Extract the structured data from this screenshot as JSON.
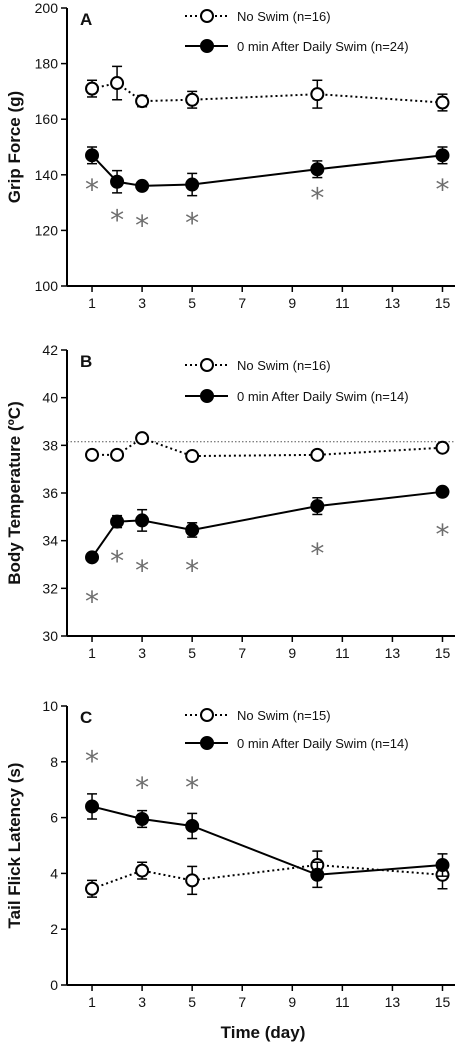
{
  "chart_data": [
    {
      "type": "line",
      "panel_label": "A",
      "ylabel": "Grip Force (g)",
      "xlabel": "",
      "xlim": [
        0,
        15.5
      ],
      "ylim": [
        100,
        200
      ],
      "xticks": [
        1,
        3,
        5,
        7,
        9,
        11,
        13,
        15
      ],
      "yticks": [
        100,
        120,
        140,
        160,
        180,
        200
      ],
      "ytick_labels": [
        "100",
        "120",
        "140",
        "160",
        "180",
        "200"
      ],
      "grid": false,
      "legend_position": "top",
      "reference_line": null,
      "series": [
        {
          "name": "No Swim (n=16)",
          "marker": "open-circle",
          "line_style": "dotted",
          "color": "#000000",
          "x": [
            1,
            2,
            3,
            5,
            10,
            15
          ],
          "y": [
            171,
            173,
            166.5,
            167,
            169,
            166
          ],
          "err": [
            3,
            6,
            2,
            3,
            5,
            3
          ]
        },
        {
          "name": "0 min After Daily Swim (n=24)",
          "marker": "filled-circle",
          "line_style": "solid",
          "color": "#000000",
          "x": [
            1,
            2,
            3,
            5,
            10,
            15
          ],
          "y": [
            147,
            137.5,
            136,
            136.5,
            142,
            147
          ],
          "err": [
            3,
            4,
            1.5,
            4,
            3,
            3
          ]
        }
      ],
      "significance_marker": "*",
      "significance_color": "#6e6e6e",
      "significance_points": [
        [
          1,
          136
        ],
        [
          2,
          125
        ],
        [
          3,
          123
        ],
        [
          5,
          124
        ],
        [
          10,
          133
        ],
        [
          15,
          136
        ]
      ]
    },
    {
      "type": "line",
      "panel_label": "B",
      "ylabel": "Body Temperature (ºC)",
      "xlabel": "",
      "xlim": [
        0,
        15.5
      ],
      "ylim": [
        30,
        42
      ],
      "xticks": [
        1,
        3,
        5,
        7,
        9,
        11,
        13,
        15
      ],
      "yticks": [
        30,
        32,
        34,
        36,
        38,
        40,
        42
      ],
      "ytick_labels": [
        "30",
        "32",
        "34",
        "36",
        "38",
        "40",
        "42"
      ],
      "grid": false,
      "legend_position": "top",
      "reference_line": 38.15,
      "series": [
        {
          "name": "No Swim (n=16)",
          "marker": "open-circle",
          "line_style": "dotted",
          "color": "#000000",
          "x": [
            1,
            2,
            3,
            5,
            10,
            15
          ],
          "y": [
            37.6,
            37.6,
            38.3,
            37.55,
            37.6,
            37.9
          ],
          "err": [
            0,
            0,
            0,
            0,
            0,
            0
          ]
        },
        {
          "name": "0 min After Daily Swim (n=14)",
          "marker": "filled-circle",
          "line_style": "solid",
          "color": "#000000",
          "x": [
            1,
            2,
            3,
            5,
            10,
            15
          ],
          "y": [
            33.3,
            34.8,
            34.85,
            34.45,
            35.45,
            36.05
          ],
          "err": [
            0,
            0.25,
            0.45,
            0.3,
            0.35,
            0
          ]
        }
      ],
      "significance_marker": "*",
      "significance_color": "#6e6e6e",
      "significance_points": [
        [
          1,
          31.6
        ],
        [
          2,
          33.3
        ],
        [
          3,
          32.9
        ],
        [
          5,
          32.9
        ],
        [
          10,
          33.6
        ],
        [
          15,
          34.4
        ]
      ]
    },
    {
      "type": "line",
      "panel_label": "C",
      "ylabel": "Tail Flick Latency (s)",
      "xlabel": "Time (day)",
      "xlim": [
        0,
        15.5
      ],
      "ylim": [
        0,
        10
      ],
      "xticks": [
        1,
        3,
        5,
        7,
        9,
        11,
        13,
        15
      ],
      "yticks": [
        0,
        2,
        4,
        6,
        8,
        10
      ],
      "ytick_labels": [
        "0",
        "2",
        "4",
        "6",
        "8",
        "10"
      ],
      "grid": false,
      "legend_position": "top",
      "reference_line": null,
      "series": [
        {
          "name": "No Swim (n=15)",
          "marker": "open-circle",
          "line_style": "dotted",
          "color": "#000000",
          "x": [
            1,
            3,
            5,
            10,
            15
          ],
          "y": [
            3.45,
            4.1,
            3.75,
            4.3,
            3.95
          ],
          "err": [
            0.3,
            0.3,
            0.5,
            0.5,
            0.5
          ]
        },
        {
          "name": "0 min After Daily Swim (n=14)",
          "marker": "filled-circle",
          "line_style": "solid",
          "color": "#000000",
          "x": [
            1,
            3,
            5,
            10,
            15
          ],
          "y": [
            6.4,
            5.95,
            5.7,
            3.95,
            4.3
          ],
          "err": [
            0.45,
            0.3,
            0.45,
            0.45,
            0.4
          ]
        }
      ],
      "significance_marker": "*",
      "significance_color": "#6e6e6e",
      "significance_points": [
        [
          1,
          8.15
        ],
        [
          3,
          7.2
        ],
        [
          5,
          7.2
        ]
      ]
    }
  ]
}
